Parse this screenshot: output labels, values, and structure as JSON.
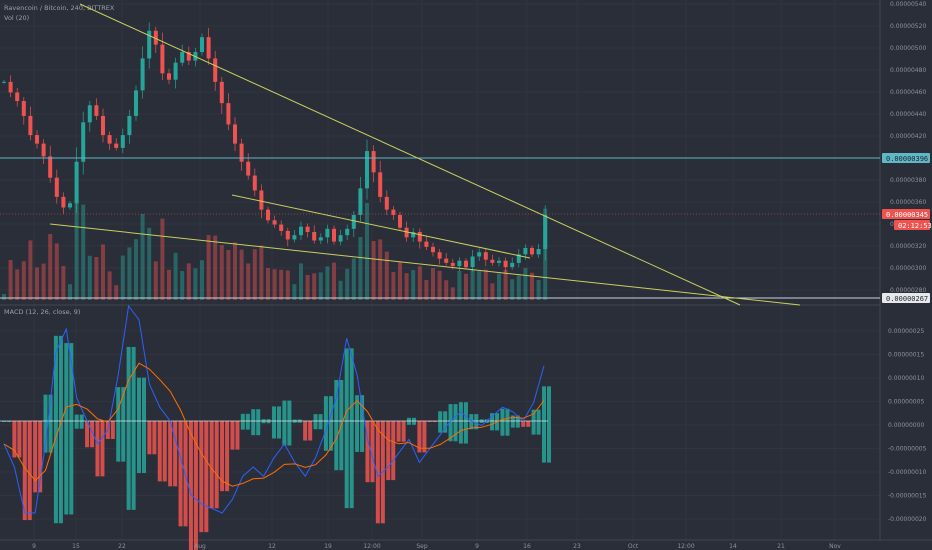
{
  "header": {
    "symbol_line": "Ravencoin / Bitcoin, 240, BITTREX",
    "volume_line": "Vol (20)",
    "macd_line": "MACD (12, 26, close, 9)"
  },
  "colors": {
    "background": "#2a2e39",
    "grid": "#363a45",
    "up": "#26a69a",
    "down": "#ef5350",
    "trendline": "#c8d05e",
    "resistance": "#5fb8c5",
    "current": "#ef5350",
    "macd": "#2962ff",
    "signal": "#ff6d00"
  },
  "price_axis": {
    "ticks": [
      "0.00000540",
      "0.00000520",
      "0.00000500",
      "0.00000480",
      "0.00000460",
      "0.00000440",
      "0.00000420",
      "0.00000400",
      "0.00000380",
      "0.00000360",
      "0.00000340",
      "0.00000320",
      "0.00000300",
      "0.00000280"
    ],
    "level_labels": [
      {
        "name": "resistance-label",
        "text": "0.00000396"
      },
      {
        "name": "current-price-label",
        "text": "0.00000345"
      },
      {
        "name": "countdown-label",
        "text": "02:12:53"
      },
      {
        "name": "support-label",
        "text": "0.00000267"
      }
    ]
  },
  "macd_axis": {
    "ticks": [
      "0.00000025",
      "0.00000015",
      "0.00000010",
      "0.00000005",
      "0.00000000",
      "-0.00000005",
      "-0.00000010",
      "-0.00000015",
      "-0.00000020"
    ]
  },
  "time_axis": {
    "labels": [
      "9",
      "15",
      "22",
      "Aug",
      "12",
      "19",
      "12:00",
      "Sep",
      "9",
      "16",
      "23",
      "Oct",
      "12:00",
      "14",
      "21",
      "Nov"
    ]
  },
  "chart_data": {
    "type": "candlestick",
    "levels": {
      "resistance": 3.96e-06,
      "current": 3.45e-06,
      "support": 2.67e-06
    },
    "price_range": [
      2.67e-06,
      5.45e-06
    ],
    "close_series": [
      4.7e-06,
      4.6e-06,
      4.52e-06,
      4.38e-06,
      4.2e-06,
      4.12e-06,
      4e-06,
      3.8e-06,
      3.62e-06,
      3.52e-06,
      3.56e-06,
      3.95e-06,
      4.32e-06,
      4.48e-06,
      4.38e-06,
      4.2e-06,
      4.12e-06,
      4.08e-06,
      4.2e-06,
      4.38e-06,
      4.62e-06,
      4.92e-06,
      5.18e-06,
      5.05e-06,
      4.78e-06,
      4.72e-06,
      4.88e-06,
      4.98e-06,
      4.9e-06,
      4.98e-06,
      5.12e-06,
      4.92e-06,
      4.7e-06,
      4.5e-06,
      4.3e-06,
      4.12e-06,
      3.95e-06,
      3.82e-06,
      3.68e-06,
      3.5e-06,
      3.4e-06,
      3.36e-06,
      3.3e-06,
      3.22e-06,
      3.26e-06,
      3.34e-06,
      3.29e-06,
      3.21e-06,
      3.24e-06,
      3.32e-06,
      3.2e-06,
      3.26e-06,
      3.32e-06,
      3.45e-06,
      3.7e-06,
      4.05e-06,
      3.85e-06,
      3.62e-06,
      3.5e-06,
      3.45e-06,
      3.33e-06,
      3.24e-06,
      3.29e-06,
      3.2e-06,
      3.15e-06,
      3.1e-06,
      3.04e-06,
      3e-06,
      2.97e-06,
      3.02e-06,
      2.96e-06,
      3.06e-06,
      3.1e-06,
      3.03e-06,
      3e-06,
      3.02e-06,
      2.96e-06,
      3e-06,
      3.08e-06,
      3.14e-06,
      3.08e-06,
      3.13e-06,
      3.45e-06
    ],
    "macd_series": [
      -5e-08,
      -1e-07,
      -2e-07,
      -2e-07,
      -5e-08,
      1.5e-07,
      2e-07,
      5e-08,
      0.0,
      -5e-08,
      -2e-08,
      1e-07,
      2.5e-07,
      2.2e-07,
      8e-08,
      3e-08,
      0.0,
      -8e-08,
      -1.6e-07,
      -1.8e-07,
      -1.9e-07,
      -2e-07,
      -1.7e-07,
      -1.2e-07,
      -1e-07,
      -1.2e-07,
      -8e-08,
      -5e-08,
      -9e-08,
      -1.2e-07,
      -8e-08,
      -2e-08,
      5e-08,
      1.8e-07,
      1e-07,
      -4e-08,
      -1.2e-07,
      -1e-07,
      -7e-08,
      -4e-08,
      -9e-08,
      -6e-08,
      -3e-08,
      0.0,
      2e-08,
      0.0,
      -1e-08,
      1e-08,
      3e-08,
      2e-08,
      0.0,
      4e-08,
      1.2e-07
    ]
  }
}
